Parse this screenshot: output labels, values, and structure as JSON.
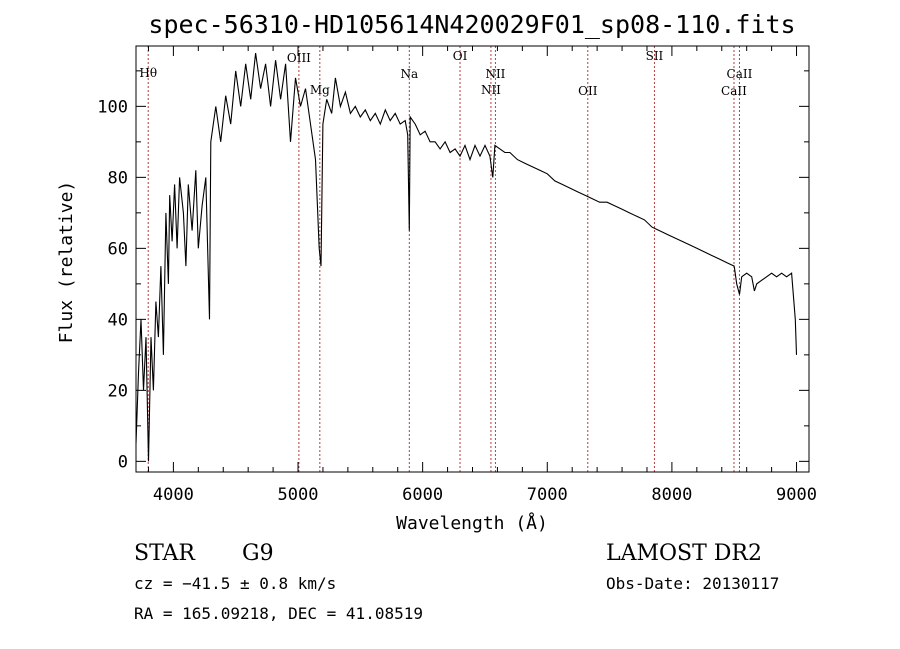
{
  "chart_data": {
    "type": "line",
    "title": "spec-56310-HD105614N420029F01_sp08-110.fits",
    "xlabel": "Wavelength (Å)",
    "ylabel": "Flux (relative)",
    "xlim": [
      3700,
      9100
    ],
    "ylim": [
      -3,
      117
    ],
    "xticks": [
      4000,
      5000,
      6000,
      7000,
      8000,
      9000
    ],
    "yticks": [
      0,
      20,
      40,
      60,
      80,
      100
    ],
    "grid": false,
    "series": [
      {
        "values_description_free": true,
        "x": [
          3700,
          3720,
          3740,
          3760,
          3780,
          3800,
          3820,
          3840,
          3860,
          3880,
          3900,
          3920,
          3940,
          3960,
          3970,
          3990,
          4010,
          4030,
          4050,
          4080,
          4100,
          4120,
          4150,
          4180,
          4200,
          4230,
          4260,
          4290,
          4300,
          4340,
          4380,
          4420,
          4460,
          4500,
          4540,
          4580,
          4620,
          4660,
          4700,
          4740,
          4780,
          4820,
          4860,
          4900,
          4940,
          4980,
          5020,
          5060,
          5100,
          5140,
          5170,
          5184,
          5200,
          5230,
          5270,
          5300,
          5340,
          5380,
          5420,
          5460,
          5500,
          5540,
          5580,
          5620,
          5660,
          5700,
          5740,
          5780,
          5820,
          5860,
          5880,
          5893,
          5900,
          5940,
          5980,
          6020,
          6060,
          6100,
          6140,
          6180,
          6220,
          6260,
          6300,
          6340,
          6380,
          6420,
          6460,
          6500,
          6540,
          6563,
          6580,
          6620,
          6660,
          6700,
          6760,
          6820,
          6880,
          6940,
          7000,
          7060,
          7120,
          7180,
          7240,
          7300,
          7360,
          7420,
          7480,
          7540,
          7600,
          7660,
          7720,
          7780,
          7840,
          7900,
          7960,
          8020,
          8080,
          8140,
          8200,
          8260,
          8320,
          8380,
          8440,
          8500,
          8520,
          8542,
          8560,
          8600,
          8640,
          8662,
          8680,
          8720,
          8760,
          8800,
          8840,
          8880,
          8920,
          8960,
          8990,
          9000
        ],
        "y": [
          5,
          25,
          40,
          20,
          35,
          0,
          35,
          20,
          45,
          35,
          55,
          30,
          70,
          50,
          75,
          62,
          78,
          60,
          80,
          70,
          55,
          78,
          65,
          82,
          60,
          72,
          80,
          40,
          90,
          100,
          90,
          103,
          95,
          110,
          100,
          112,
          102,
          115,
          105,
          112,
          100,
          113,
          102,
          112,
          90,
          108,
          100,
          105,
          95,
          85,
          60,
          55,
          95,
          102,
          98,
          108,
          100,
          104,
          98,
          100,
          97,
          99,
          96,
          98,
          95,
          99,
          96,
          98,
          95,
          96,
          92,
          65,
          97,
          95,
          92,
          93,
          90,
          90,
          88,
          90,
          87,
          88,
          86,
          89,
          85,
          89,
          86,
          89,
          86,
          80,
          89,
          88,
          87,
          87,
          85,
          84,
          83,
          82,
          81,
          79,
          78,
          77,
          76,
          75,
          74,
          73,
          73,
          72,
          71,
          70,
          69,
          68,
          66,
          65,
          64,
          63,
          62,
          61,
          60,
          59,
          58,
          57,
          56,
          55,
          50,
          47,
          52,
          53,
          52,
          48,
          50,
          51,
          52,
          53,
          52,
          53,
          52,
          53,
          40,
          30
        ]
      }
    ],
    "line_markers": [
      {
        "label": "Hθ",
        "x": 3798
      },
      {
        "label": "OIII",
        "x": 5007
      },
      {
        "label": "Mg",
        "x": 5175
      },
      {
        "label": "Na",
        "x": 5893
      },
      {
        "label": "OI",
        "x": 6300
      },
      {
        "label": "NII",
        "x": 6548
      },
      {
        "label": "NII",
        "x": 6584
      },
      {
        "label": "OII",
        "x": 7325
      },
      {
        "label": "SII",
        "x": 7860
      },
      {
        "label": "CaII",
        "x": 8498
      },
      {
        "label": "CaII",
        "x": 8542
      }
    ],
    "marker_color": "#b0413e"
  },
  "info": {
    "object_type": "STAR",
    "subclass": "G9",
    "survey": "LAMOST DR2",
    "cz": "cz = −41.5 ± 0.8 km/s",
    "obs_date": "Obs-Date: 20130117",
    "coords": "RA = 165.09218, DEC =  41.08519"
  }
}
